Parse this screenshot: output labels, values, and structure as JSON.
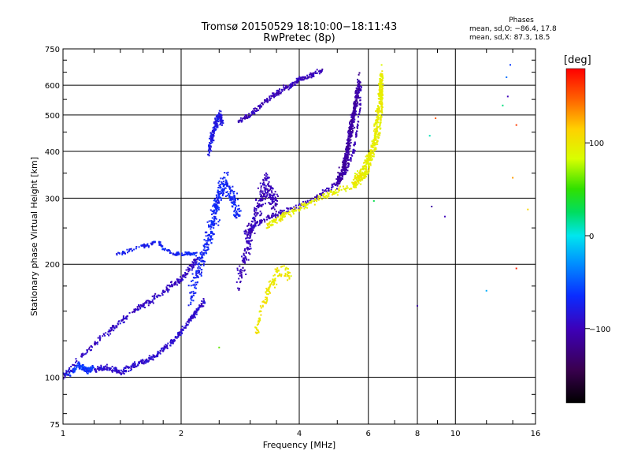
{
  "title": {
    "line1": "Tromsø 20150529 18:10:00−18:11:43",
    "line2": "RwPretec (8p)"
  },
  "phase_stats": {
    "heading": "Phases",
    "o_line": "mean, sd,O: −86.4, 17.8",
    "x_line": "mean, sd,X: 87.3, 18.5"
  },
  "colorbar": {
    "unit": "[deg]",
    "ticks": [
      "100",
      "0",
      "−100"
    ],
    "tick_values": [
      100,
      0,
      -100
    ],
    "range": [
      -180,
      180
    ]
  },
  "chart_data": {
    "type": "scatter",
    "xlabel": "Frequency [MHz]",
    "ylabel": "Stationary phase Virtual Height [km]",
    "xscale": "log",
    "yscale": "log",
    "xlim": [
      1,
      16
    ],
    "ylim": [
      75,
      750
    ],
    "x_ticks": [
      1,
      2,
      4,
      6,
      8,
      10,
      16
    ],
    "x_tick_labels": [
      "1",
      "2",
      "4",
      "6",
      "8",
      "10",
      "16"
    ],
    "y_ticks": [
      75,
      100,
      200,
      300,
      400,
      500,
      600,
      750
    ],
    "y_tick_labels": [
      "75",
      "100",
      "200",
      "300",
      "400",
      "500",
      "600",
      "750"
    ],
    "grid": true,
    "color_encodes": "phase (deg)",
    "traces": [
      {
        "phase": -60,
        "count": 140,
        "spread": 0.012,
        "points": [
          [
            1.0,
            101
          ],
          [
            1.05,
            103
          ],
          [
            1.1,
            108
          ],
          [
            1.15,
            104
          ],
          [
            1.2,
            106
          ]
        ]
      },
      {
        "phase": -90,
        "count": 360,
        "spread": 0.012,
        "points": [
          [
            1.2,
            104
          ],
          [
            1.3,
            106
          ],
          [
            1.4,
            103
          ],
          [
            1.5,
            107
          ],
          [
            1.6,
            110
          ],
          [
            1.7,
            113
          ],
          [
            1.8,
            119
          ],
          [
            1.9,
            124
          ],
          [
            2.0,
            132
          ],
          [
            2.1,
            142
          ],
          [
            2.2,
            150
          ],
          [
            2.3,
            160
          ]
        ]
      },
      {
        "phase": -95,
        "count": 300,
        "spread": 0.014,
        "points": [
          [
            1.0,
            100
          ],
          [
            1.1,
            112
          ],
          [
            1.2,
            122
          ],
          [
            1.3,
            132
          ],
          [
            1.4,
            140
          ],
          [
            1.5,
            148
          ],
          [
            1.6,
            156
          ],
          [
            1.7,
            162
          ],
          [
            1.8,
            168
          ],
          [
            1.9,
            176
          ],
          [
            2.0,
            182
          ],
          [
            2.1,
            195
          ],
          [
            2.2,
            205
          ]
        ]
      },
      {
        "phase": -75,
        "count": 60,
        "spread": 0.008,
        "points": [
          [
            1.35,
            212
          ],
          [
            1.45,
            216
          ],
          [
            1.55,
            222
          ],
          [
            1.65,
            225
          ],
          [
            1.72,
            230
          ]
        ]
      },
      {
        "phase": -70,
        "count": 90,
        "spread": 0.008,
        "points": [
          [
            1.75,
            230
          ],
          [
            1.8,
            220
          ],
          [
            1.9,
            215
          ],
          [
            2.0,
            212
          ],
          [
            2.1,
            214
          ],
          [
            2.2,
            213
          ]
        ]
      },
      {
        "phase": -70,
        "count": 420,
        "spread": 0.05,
        "points": [
          [
            2.1,
            160
          ],
          [
            2.2,
            190
          ],
          [
            2.3,
            220
          ],
          [
            2.4,
            250
          ],
          [
            2.45,
            280
          ],
          [
            2.5,
            310
          ],
          [
            2.6,
            330
          ],
          [
            2.7,
            300
          ],
          [
            2.8,
            270
          ]
        ]
      },
      {
        "phase": -80,
        "count": 200,
        "spread": 0.025,
        "points": [
          [
            2.35,
            400
          ],
          [
            2.4,
            440
          ],
          [
            2.45,
            470
          ],
          [
            2.5,
            500
          ],
          [
            2.55,
            480
          ]
        ]
      },
      {
        "phase": -100,
        "count": 320,
        "spread": 0.05,
        "points": [
          [
            2.8,
            180
          ],
          [
            2.9,
            210
          ],
          [
            3.0,
            240
          ],
          [
            3.1,
            270
          ],
          [
            3.2,
            300
          ],
          [
            3.3,
            330
          ],
          [
            3.4,
            300
          ],
          [
            3.5,
            290
          ]
        ]
      },
      {
        "phase": -100,
        "count": 240,
        "spread": 0.012,
        "points": [
          [
            2.8,
            480
          ],
          [
            3.0,
            500
          ],
          [
            3.2,
            530
          ],
          [
            3.4,
            560
          ],
          [
            3.6,
            580
          ],
          [
            3.8,
            600
          ],
          [
            4.0,
            620
          ],
          [
            4.3,
            640
          ],
          [
            4.6,
            660
          ]
        ]
      },
      {
        "phase": -100,
        "count": 260,
        "spread": 0.012,
        "points": [
          [
            2.9,
            240
          ],
          [
            3.1,
            255
          ],
          [
            3.3,
            265
          ],
          [
            3.5,
            272
          ],
          [
            3.7,
            278
          ],
          [
            4.0,
            285
          ],
          [
            4.3,
            295
          ],
          [
            4.6,
            310
          ],
          [
            5.0,
            330
          ],
          [
            5.3,
            360
          ],
          [
            5.5,
            400
          ],
          [
            5.6,
            450
          ],
          [
            5.7,
            520
          ],
          [
            5.75,
            600
          ]
        ]
      },
      {
        "phase": -110,
        "count": 520,
        "spread": 0.03,
        "points": [
          [
            5.0,
            330
          ],
          [
            5.2,
            360
          ],
          [
            5.3,
            400
          ],
          [
            5.4,
            450
          ],
          [
            5.5,
            500
          ],
          [
            5.6,
            560
          ],
          [
            5.7,
            620
          ]
        ]
      },
      {
        "phase": 95,
        "count": 320,
        "spread": 0.014,
        "points": [
          [
            3.3,
            252
          ],
          [
            3.5,
            262
          ],
          [
            3.7,
            272
          ],
          [
            4.0,
            282
          ],
          [
            4.3,
            292
          ],
          [
            4.7,
            305
          ],
          [
            5.0,
            315
          ],
          [
            5.5,
            325
          ],
          [
            5.9,
            345
          ],
          [
            6.2,
            390
          ],
          [
            6.4,
            450
          ],
          [
            6.5,
            520
          ],
          [
            6.5,
            600
          ]
        ]
      },
      {
        "phase": 95,
        "count": 420,
        "spread": 0.03,
        "points": [
          [
            5.5,
            330
          ],
          [
            5.8,
            350
          ],
          [
            6.0,
            380
          ],
          [
            6.2,
            420
          ],
          [
            6.3,
            470
          ],
          [
            6.4,
            530
          ],
          [
            6.45,
            600
          ],
          [
            6.5,
            650
          ]
        ]
      },
      {
        "phase": 100,
        "count": 130,
        "spread": 0.03,
        "points": [
          [
            3.1,
            130
          ],
          [
            3.2,
            150
          ],
          [
            3.3,
            165
          ],
          [
            3.4,
            178
          ],
          [
            3.5,
            188
          ],
          [
            3.7,
            192
          ],
          [
            3.8,
            185
          ]
        ]
      }
    ],
    "scattered_points": [
      {
        "x": 8.0,
        "y": 155,
        "phase": -110
      },
      {
        "x": 8.7,
        "y": 285,
        "phase": -110
      },
      {
        "x": 9.4,
        "y": 268,
        "phase": -100
      },
      {
        "x": 8.6,
        "y": 440,
        "phase": 10
      },
      {
        "x": 8.9,
        "y": 490,
        "phase": 150
      },
      {
        "x": 12.0,
        "y": 170,
        "phase": -20
      },
      {
        "x": 13.2,
        "y": 530,
        "phase": 20
      },
      {
        "x": 13.6,
        "y": 560,
        "phase": -100
      },
      {
        "x": 14.0,
        "y": 340,
        "phase": 130
      },
      {
        "x": 14.3,
        "y": 470,
        "phase": 160
      },
      {
        "x": 14.3,
        "y": 195,
        "phase": 170
      },
      {
        "x": 15.3,
        "y": 280,
        "phase": 110
      },
      {
        "x": 13.8,
        "y": 680,
        "phase": -60
      },
      {
        "x": 13.5,
        "y": 630,
        "phase": -40
      },
      {
        "x": 6.2,
        "y": 295,
        "phase": 30
      },
      {
        "x": 2.5,
        "y": 120,
        "phase": 60
      }
    ]
  }
}
